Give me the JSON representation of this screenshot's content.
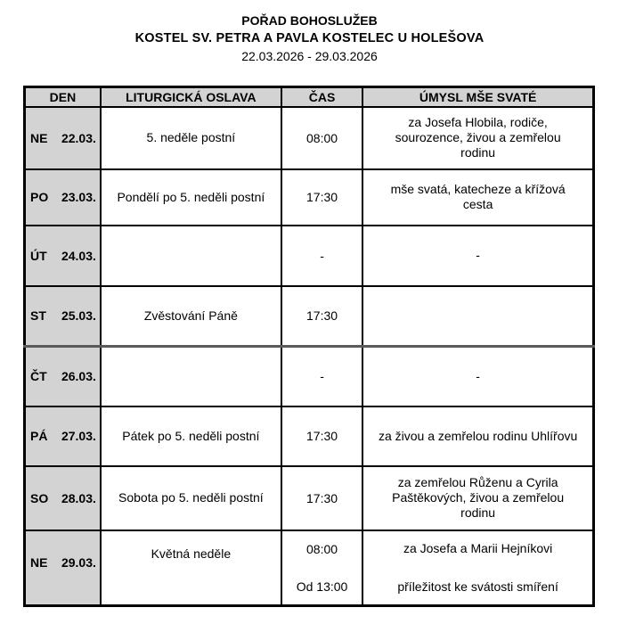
{
  "header": {
    "title": "POŘAD BOHOSLUŽEB",
    "subtitle": "KOSTEL SV. PETRA A PAVLA KOSTELEC U HOLEŠOVA",
    "date_range": "22.03.2026 - 29.03.2026"
  },
  "table": {
    "columns": [
      "DEN",
      "LITURGICKÁ OSLAVA",
      "ČAS",
      "ÚMYSL MŠE SVATÉ"
    ],
    "rows": [
      {
        "day_abbr": "NE",
        "day_date": "22.03.",
        "celebration": "5. neděle postní",
        "time": "08:00",
        "intention": "za Josefa Hlobila, rodiče, sourozence, živou a zemřelou rodinu"
      },
      {
        "day_abbr": "PO",
        "day_date": "23.03.",
        "celebration": "Pondělí po 5. neděli postní",
        "time": "17:30",
        "intention": "mše svatá, katecheze a křížová cesta"
      },
      {
        "day_abbr": "ÚT",
        "day_date": "24.03.",
        "celebration": "",
        "time": "-",
        "intention": "-"
      },
      {
        "day_abbr": "ST",
        "day_date": "25.03.",
        "celebration": "Zvěstování Páně",
        "time": "17:30",
        "intention": ""
      },
      {
        "day_abbr": "ČT",
        "day_date": "26.03.",
        "celebration": "",
        "time": "-",
        "intention": "-"
      },
      {
        "day_abbr": "PÁ",
        "day_date": "27.03.",
        "celebration": "Pátek po 5. neděli postní",
        "time": "17:30",
        "intention": "za živou a zemřelou rodinu Uhlířovu"
      },
      {
        "day_abbr": "SO",
        "day_date": "28.03.",
        "celebration": "Sobota po 5. neděli postní",
        "time": "17:30",
        "intention": "za zemřelou Růženu a Cyrila Paštěkových, živou a zemřelou rodinu"
      },
      {
        "day_abbr": "NE",
        "day_date": "29.03.",
        "celebration": "Květná neděle",
        "time": "08:00",
        "intention": "za Josefa a Marii Hejníkovi",
        "time2": "Od 13:00",
        "intention2": "příležitost ke svátosti smíření"
      }
    ]
  },
  "colors": {
    "header_bg": "#d3d3d3",
    "day_column_bg": "#d3d3d3",
    "border": "#000000",
    "page_break_divider": "#5a5a5a",
    "text": "#000000"
  }
}
